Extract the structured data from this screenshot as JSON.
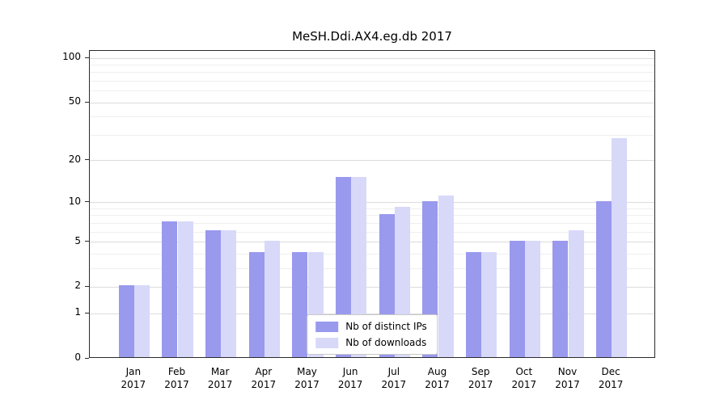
{
  "chart_data": {
    "type": "bar",
    "title": "MeSH.Ddi.AX4.eg.db 2017",
    "categories": [
      "Jan",
      "Feb",
      "Mar",
      "Apr",
      "May",
      "Jun",
      "Jul",
      "Aug",
      "Sep",
      "Oct",
      "Nov",
      "Dec"
    ],
    "year_label": "2017",
    "series": [
      {
        "name": "Nb of distinct IPs",
        "color": "#9999ee",
        "values": [
          2,
          7,
          6,
          4,
          4,
          15,
          8,
          10,
          4,
          5,
          5,
          10
        ]
      },
      {
        "name": "Nb of downloads",
        "color": "#d8d8f9",
        "values": [
          2,
          7,
          6,
          5,
          4,
          15,
          9,
          11,
          4,
          5,
          6,
          28
        ]
      }
    ],
    "yscale": "log1p",
    "yticks": [
      0,
      1,
      2,
      5,
      10,
      20,
      50,
      100
    ],
    "minor_yticks": [
      3,
      4,
      6,
      7,
      8,
      9,
      30,
      40,
      60,
      70,
      80,
      90
    ],
    "ylim": [
      0,
      112
    ],
    "legend_position": "bottom-center",
    "grid": "horizontal"
  }
}
